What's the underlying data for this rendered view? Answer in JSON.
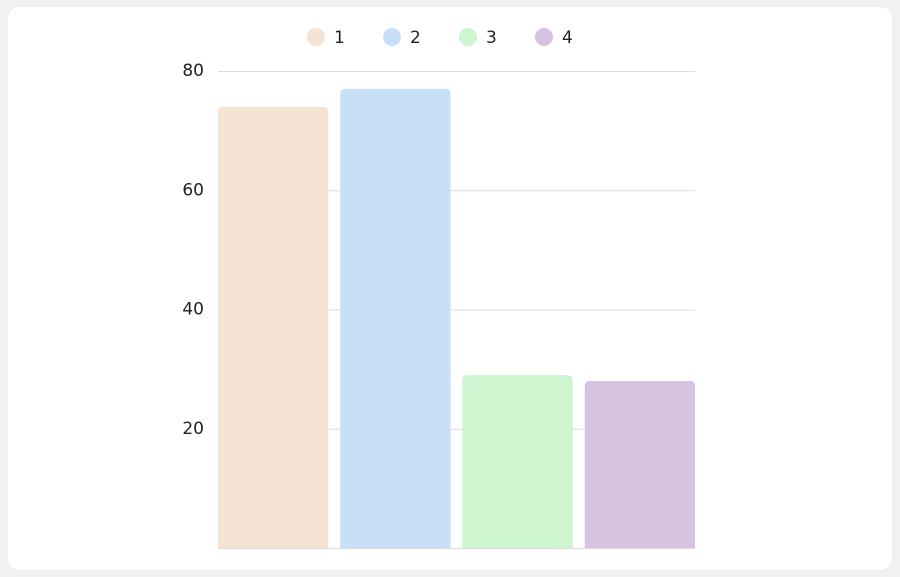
{
  "chart_data": {
    "type": "bar",
    "categories": [
      null
    ],
    "series": [
      {
        "name": "1",
        "color": "#f5e3d4",
        "values": [
          74
        ]
      },
      {
        "name": "2",
        "color": "#c9dff8",
        "values": [
          77
        ]
      },
      {
        "name": "3",
        "color": "#ccf5d0",
        "values": [
          29
        ]
      },
      {
        "name": "4",
        "color": "#d6c3e0",
        "values": [
          28
        ]
      }
    ],
    "ylim": [
      0,
      80
    ],
    "yticks": [
      20,
      40,
      60,
      80
    ],
    "grid": true,
    "legend": "top"
  }
}
